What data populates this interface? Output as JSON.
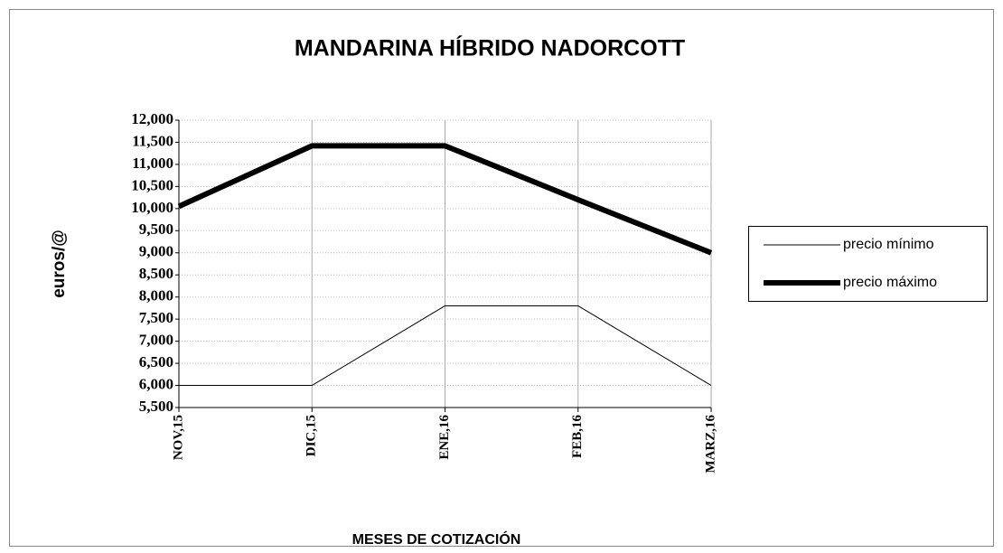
{
  "chart_data": {
    "type": "line",
    "title": "MANDARINA HÍBRIDO NADORCOTT",
    "x_label": "MESES DE COTIZACIÓN",
    "y_label": "euros/@",
    "categories": [
      "NOV,15",
      "DIC,15",
      "ENE,16",
      "FEB,16",
      "MARZ,16"
    ],
    "series": [
      {
        "name": "precio mínimo",
        "color": "#000000",
        "width": 1,
        "values": [
          6.0,
          6.0,
          7.8,
          7.8,
          6.0
        ]
      },
      {
        "name": "precio máximo",
        "color": "#000000",
        "width": 6,
        "values": [
          10.05,
          11.42,
          11.42,
          10.2,
          9.0
        ]
      }
    ],
    "ylim": [
      5.5,
      12
    ],
    "yticks": [
      {
        "value": 5.5,
        "label": "5,500"
      },
      {
        "value": 6,
        "label": "6,000"
      },
      {
        "value": 6.5,
        "label": "6,500"
      },
      {
        "value": 7,
        "label": "7,000"
      },
      {
        "value": 7.5,
        "label": "7,500"
      },
      {
        "value": 8,
        "label": "8,000"
      },
      {
        "value": 8.5,
        "label": "8,500"
      },
      {
        "value": 9,
        "label": "9,000"
      },
      {
        "value": 9.5,
        "label": "9,500"
      },
      {
        "value": 10,
        "label": "10,000"
      },
      {
        "value": 10.5,
        "label": "10,500"
      },
      {
        "value": 11,
        "label": "11,000"
      },
      {
        "value": 11.5,
        "label": "11,500"
      },
      {
        "value": 12,
        "label": "12,000"
      }
    ],
    "grid": true,
    "legend": "right"
  }
}
